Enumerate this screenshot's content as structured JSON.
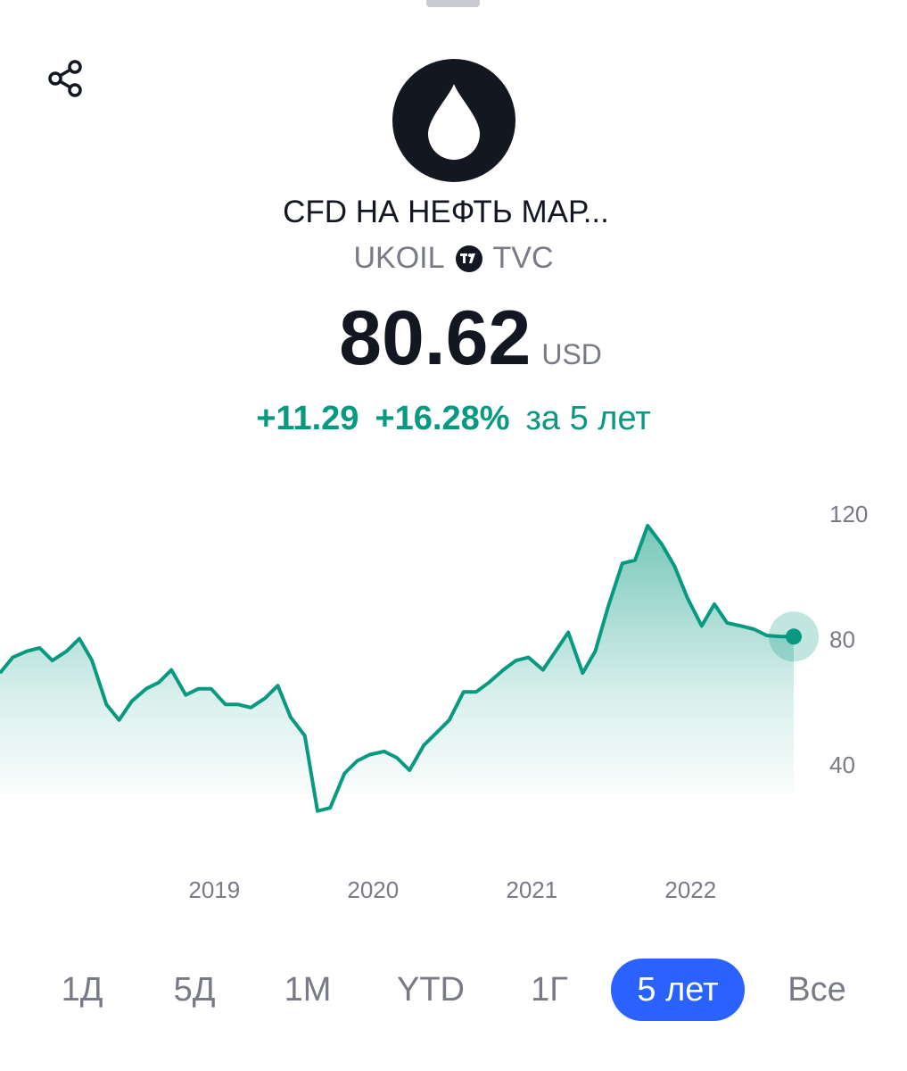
{
  "instrument": {
    "name": "CFD НА НЕФТЬ МАР...",
    "symbol": "UKOIL",
    "exchange": "TVC",
    "logo_icon": "oil-drop-icon",
    "price": "80.62",
    "currency": "USD",
    "change_abs": "+11.29",
    "change_pct": "+16.28%",
    "change_period": "за 5 лет"
  },
  "icons": {
    "share": "share-icon",
    "exchange_badge": "tradingview-icon"
  },
  "colors": {
    "positive": "#089981",
    "active_range": "#2962ff",
    "muted_text": "#787b86",
    "primary_text": "#131722"
  },
  "time_ranges": {
    "items": [
      "1Д",
      "5Д",
      "1М",
      "YTD",
      "1Г",
      "5 лет",
      "Все"
    ],
    "selected": "5 лет"
  },
  "chart_data": {
    "type": "area",
    "y_axis": {
      "ticks": [
        "120",
        "80",
        "40"
      ],
      "range": [
        20,
        130
      ]
    },
    "x_axis": {
      "ticks": [
        "2019",
        "2020",
        "2021",
        "2022"
      ]
    },
    "grid": false,
    "last_value": 80.62,
    "series": [
      {
        "x": [
          2018.0,
          2018.08,
          2018.17,
          2018.25,
          2018.33,
          2018.42,
          2018.5,
          2018.58,
          2018.67,
          2018.75,
          2018.83,
          2018.92,
          2019.0,
          2019.08,
          2019.17,
          2019.25,
          2019.33,
          2019.42,
          2019.5,
          2019.58,
          2019.67,
          2019.75,
          2019.83,
          2019.92,
          2020.0,
          2020.08,
          2020.17,
          2020.25,
          2020.33,
          2020.42,
          2020.5,
          2020.58,
          2020.67,
          2020.75,
          2020.83,
          2020.92,
          2021.0,
          2021.08,
          2021.17,
          2021.25,
          2021.33,
          2021.42,
          2021.5,
          2021.58,
          2021.67,
          2021.75,
          2021.83,
          2021.92,
          2022.0,
          2022.08,
          2022.17,
          2022.25,
          2022.33,
          2022.42,
          2022.5,
          2022.58,
          2022.67,
          2022.75,
          2022.83,
          2022.92,
          2023.0
        ],
        "values": [
          69,
          74,
          76,
          77,
          73,
          76,
          80,
          73,
          59,
          54,
          60,
          64,
          66,
          70,
          62,
          64,
          64,
          59,
          59,
          58,
          61,
          65,
          55,
          49,
          25,
          26,
          37,
          41,
          43,
          44,
          42,
          38,
          46,
          50,
          54,
          63,
          63,
          66,
          70,
          73,
          74,
          70,
          76,
          82,
          69,
          76,
          90,
          104,
          105,
          116,
          110,
          103,
          93,
          84,
          91,
          85,
          84,
          83,
          81,
          80.62,
          80.62
        ]
      }
    ]
  }
}
